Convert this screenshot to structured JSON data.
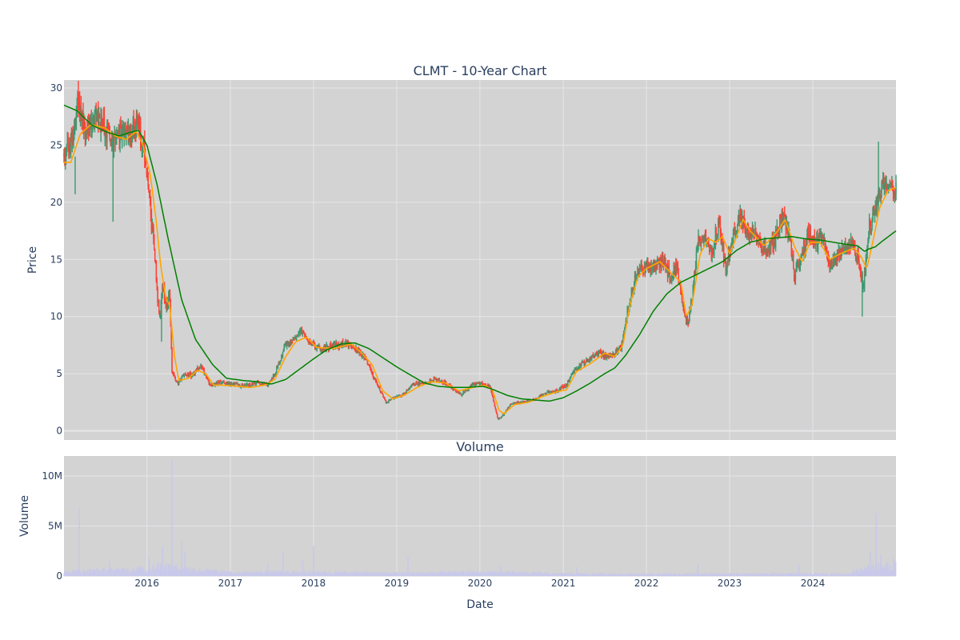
{
  "chart_data": [
    {
      "type": "candlestick",
      "title": "CLMT - 10-Year Chart",
      "ylabel": "Price",
      "xlim": [
        "2015-01-02",
        "2024-12-31"
      ],
      "ylim": [
        -0.8,
        30.7
      ],
      "yticks": [
        0,
        5,
        10,
        15,
        20,
        25,
        30
      ],
      "grid": true,
      "legend": "none",
      "colors": {
        "plot_bg": "#d3d3d3",
        "grid": "#e6e6ea",
        "increasing": "#3d9970",
        "decreasing": "#ff4136",
        "ma_short": "#ffa500",
        "ma_long": "#008000"
      },
      "price_path": [
        [
          "2015-01-02",
          24.0
        ],
        [
          "2015-02-10",
          25.5
        ],
        [
          "2015-03-05",
          28.8
        ],
        [
          "2015-04-01",
          26.2
        ],
        [
          "2015-05-15",
          27.5
        ],
        [
          "2015-07-01",
          26.5
        ],
        [
          "2015-08-15",
          25.0
        ],
        [
          "2015-09-10",
          26.2
        ],
        [
          "2015-10-15",
          25.8
        ],
        [
          "2015-11-20",
          27.0
        ],
        [
          "2015-12-20",
          24.5
        ],
        [
          "2016-01-10",
          20.5
        ],
        [
          "2016-02-05",
          15.0
        ],
        [
          "2016-02-25",
          9.5
        ],
        [
          "2016-03-10",
          12.8
        ],
        [
          "2016-03-25",
          10.8
        ],
        [
          "2016-04-10",
          12.0
        ],
        [
          "2016-04-20",
          5.2
        ],
        [
          "2016-05-15",
          4.1
        ],
        [
          "2016-06-15",
          5.0
        ],
        [
          "2016-07-20",
          4.8
        ],
        [
          "2016-08-25",
          5.8
        ],
        [
          "2016-10-01",
          4.0
        ],
        [
          "2016-11-15",
          4.2
        ],
        [
          "2017-01-10",
          4.1
        ],
        [
          "2017-03-01",
          3.9
        ],
        [
          "2017-05-01",
          4.2
        ],
        [
          "2017-06-15",
          4.0
        ],
        [
          "2017-07-20",
          5.2
        ],
        [
          "2017-09-01",
          7.5
        ],
        [
          "2017-10-15",
          8.2
        ],
        [
          "2017-11-01",
          8.8
        ],
        [
          "2017-12-15",
          7.8
        ],
        [
          "2018-02-01",
          7.2
        ],
        [
          "2018-04-01",
          7.5
        ],
        [
          "2018-06-01",
          7.6
        ],
        [
          "2018-07-15",
          7.0
        ],
        [
          "2018-08-15",
          6.4
        ],
        [
          "2018-10-01",
          4.3
        ],
        [
          "2018-11-15",
          2.5
        ],
        [
          "2018-12-20",
          2.9
        ],
        [
          "2019-02-01",
          3.2
        ],
        [
          "2019-03-10",
          4.0
        ],
        [
          "2019-05-01",
          4.2
        ],
        [
          "2019-06-15",
          4.5
        ],
        [
          "2019-08-01",
          4.2
        ],
        [
          "2019-09-15",
          3.5
        ],
        [
          "2019-10-15",
          3.2
        ],
        [
          "2019-12-01",
          4.0
        ],
        [
          "2020-01-10",
          4.2
        ],
        [
          "2020-02-15",
          3.8
        ],
        [
          "2020-03-20",
          1.0
        ],
        [
          "2020-04-15",
          1.4
        ],
        [
          "2020-05-15",
          2.4
        ],
        [
          "2020-07-01",
          2.5
        ],
        [
          "2020-09-01",
          2.8
        ],
        [
          "2020-10-15",
          3.3
        ],
        [
          "2020-12-01",
          3.5
        ],
        [
          "2021-01-15",
          4.0
        ],
        [
          "2021-02-20",
          5.5
        ],
        [
          "2021-04-01",
          5.9
        ],
        [
          "2021-06-01",
          6.8
        ],
        [
          "2021-08-01",
          6.5
        ],
        [
          "2021-09-15",
          7.5
        ],
        [
          "2021-10-15",
          11.0
        ],
        [
          "2021-11-15",
          13.5
        ],
        [
          "2021-12-15",
          14.5
        ],
        [
          "2022-01-15",
          14.2
        ],
        [
          "2022-03-15",
          14.8
        ],
        [
          "2022-04-15",
          13.5
        ],
        [
          "2022-05-15",
          14.5
        ],
        [
          "2022-06-15",
          10.0
        ],
        [
          "2022-07-01",
          9.3
        ],
        [
          "2022-07-20",
          11.5
        ],
        [
          "2022-08-15",
          16.5
        ],
        [
          "2022-09-15",
          17.2
        ],
        [
          "2022-10-15",
          15.5
        ],
        [
          "2022-11-15",
          18.5
        ],
        [
          "2022-12-15",
          14.0
        ],
        [
          "2023-01-10",
          16.5
        ],
        [
          "2023-02-15",
          19.0
        ],
        [
          "2023-03-15",
          17.2
        ],
        [
          "2023-04-15",
          17.5
        ],
        [
          "2023-05-15",
          16.0
        ],
        [
          "2023-06-15",
          15.8
        ],
        [
          "2023-07-15",
          16.5
        ],
        [
          "2023-08-15",
          18.8
        ],
        [
          "2023-09-15",
          17.8
        ],
        [
          "2023-10-15",
          13.5
        ],
        [
          "2023-11-15",
          15.5
        ],
        [
          "2023-12-15",
          17.5
        ],
        [
          "2024-01-15",
          16.5
        ],
        [
          "2024-02-15",
          16.8
        ],
        [
          "2024-03-15",
          14.5
        ],
        [
          "2024-04-15",
          15.2
        ],
        [
          "2024-05-15",
          16.0
        ],
        [
          "2024-06-15",
          16.2
        ],
        [
          "2024-07-15",
          15.5
        ],
        [
          "2024-08-10",
          12.5
        ],
        [
          "2024-09-01",
          17.5
        ],
        [
          "2024-09-20",
          18.5
        ],
        [
          "2024-10-10",
          20.0
        ],
        [
          "2024-10-25",
          21.2
        ],
        [
          "2024-11-15",
          22.0
        ],
        [
          "2024-12-31",
          21.0
        ]
      ],
      "ma_short_path": [
        [
          "2015-01-02",
          23.5
        ],
        [
          "2015-02-01",
          23.5
        ],
        [
          "2015-03-15",
          26.0
        ],
        [
          "2015-05-01",
          26.8
        ],
        [
          "2015-07-01",
          26.5
        ],
        [
          "2015-08-15",
          25.8
        ],
        [
          "2015-10-01",
          25.5
        ],
        [
          "2015-11-15",
          26.2
        ],
        [
          "2015-12-15",
          25.0
        ],
        [
          "2016-01-15",
          22.5
        ],
        [
          "2016-02-10",
          18.5
        ],
        [
          "2016-03-01",
          14.5
        ],
        [
          "2016-03-25",
          11.5
        ],
        [
          "2016-04-10",
          11.0
        ],
        [
          "2016-05-01",
          6.5
        ],
        [
          "2016-05-20",
          4.4
        ],
        [
          "2016-07-01",
          4.6
        ],
        [
          "2016-08-10",
          5.3
        ],
        [
          "2016-09-15",
          5.0
        ],
        [
          "2016-10-20",
          4.0
        ],
        [
          "2016-12-01",
          4.0
        ],
        [
          "2017-02-01",
          3.9
        ],
        [
          "2017-04-01",
          3.8
        ],
        [
          "2017-06-01",
          4.0
        ],
        [
          "2017-07-15",
          4.5
        ],
        [
          "2017-09-01",
          6.5
        ],
        [
          "2017-10-15",
          7.8
        ],
        [
          "2017-12-01",
          8.2
        ],
        [
          "2018-01-15",
          7.3
        ],
        [
          "2018-04-01",
          7.2
        ],
        [
          "2018-06-15",
          7.6
        ],
        [
          "2018-08-01",
          6.8
        ],
        [
          "2018-09-15",
          5.8
        ],
        [
          "2018-11-01",
          3.5
        ],
        [
          "2018-12-15",
          2.8
        ],
        [
          "2019-02-01",
          3.1
        ],
        [
          "2019-04-01",
          3.8
        ],
        [
          "2019-06-01",
          4.3
        ],
        [
          "2019-08-01",
          4.2
        ],
        [
          "2019-10-01",
          3.5
        ],
        [
          "2019-12-01",
          3.8
        ],
        [
          "2020-01-20",
          4.0
        ],
        [
          "2020-02-25",
          3.6
        ],
        [
          "2020-03-25",
          1.8
        ],
        [
          "2020-04-15",
          1.5
        ],
        [
          "2020-06-01",
          2.3
        ],
        [
          "2020-08-01",
          2.5
        ],
        [
          "2020-10-01",
          3.0
        ],
        [
          "2020-12-01",
          3.4
        ],
        [
          "2021-01-15",
          3.6
        ],
        [
          "2021-03-01",
          5.2
        ],
        [
          "2021-05-01",
          5.9
        ],
        [
          "2021-07-01",
          6.8
        ],
        [
          "2021-08-15",
          6.5
        ],
        [
          "2021-09-20",
          7.5
        ],
        [
          "2021-10-20",
          11.0
        ],
        [
          "2021-11-25",
          13.5
        ],
        [
          "2022-01-01",
          14.2
        ],
        [
          "2022-03-01",
          14.8
        ],
        [
          "2022-04-20",
          13.8
        ],
        [
          "2022-06-01",
          13.0
        ],
        [
          "2022-06-25",
          10.0
        ],
        [
          "2022-07-20",
          11.0
        ],
        [
          "2022-08-25",
          15.5
        ],
        [
          "2022-10-01",
          16.8
        ],
        [
          "2022-11-01",
          16.5
        ],
        [
          "2022-12-01",
          17.0
        ],
        [
          "2023-01-01",
          15.5
        ],
        [
          "2023-02-01",
          17.0
        ],
        [
          "2023-03-01",
          18.5
        ],
        [
          "2023-04-01",
          17.5
        ],
        [
          "2023-06-01",
          16.2
        ],
        [
          "2023-08-01",
          17.5
        ],
        [
          "2023-09-01",
          18.5
        ],
        [
          "2023-10-15",
          16.0
        ],
        [
          "2023-11-15",
          14.8
        ],
        [
          "2023-12-20",
          16.5
        ],
        [
          "2024-02-01",
          16.5
        ],
        [
          "2024-03-15",
          15.0
        ],
        [
          "2024-05-01",
          15.5
        ],
        [
          "2024-07-01",
          16.0
        ],
        [
          "2024-08-01",
          15.2
        ],
        [
          "2024-08-25",
          14.2
        ],
        [
          "2024-09-20",
          16.5
        ],
        [
          "2024-10-20",
          19.5
        ],
        [
          "2024-11-25",
          21.0
        ],
        [
          "2024-12-31",
          21.3
        ]
      ],
      "ma_long_path": [
        [
          "2015-01-02",
          28.5
        ],
        [
          "2015-03-01",
          28.0
        ],
        [
          "2015-05-01",
          26.8
        ],
        [
          "2015-07-01",
          26.2
        ],
        [
          "2015-09-01",
          25.8
        ],
        [
          "2015-10-15",
          26.1
        ],
        [
          "2015-11-25",
          26.3
        ],
        [
          "2016-01-01",
          25.0
        ],
        [
          "2016-02-15",
          21.5
        ],
        [
          "2016-04-01",
          17.0
        ],
        [
          "2016-06-01",
          11.5
        ],
        [
          "2016-08-01",
          8.0
        ],
        [
          "2016-10-15",
          5.8
        ],
        [
          "2016-12-15",
          4.6
        ],
        [
          "2017-03-01",
          4.4
        ],
        [
          "2017-05-01",
          4.3
        ],
        [
          "2017-07-01",
          4.1
        ],
        [
          "2017-09-01",
          4.5
        ],
        [
          "2017-11-01",
          5.4
        ],
        [
          "2018-01-01",
          6.3
        ],
        [
          "2018-03-01",
          7.1
        ],
        [
          "2018-05-01",
          7.6
        ],
        [
          "2018-07-01",
          7.7
        ],
        [
          "2018-09-01",
          7.2
        ],
        [
          "2018-11-01",
          6.4
        ],
        [
          "2019-01-01",
          5.6
        ],
        [
          "2019-03-01",
          4.9
        ],
        [
          "2019-05-01",
          4.2
        ],
        [
          "2019-07-01",
          3.9
        ],
        [
          "2019-09-01",
          3.8
        ],
        [
          "2019-11-01",
          3.8
        ],
        [
          "2020-01-15",
          3.9
        ],
        [
          "2020-03-01",
          3.6
        ],
        [
          "2020-05-01",
          3.1
        ],
        [
          "2020-07-01",
          2.8
        ],
        [
          "2020-09-01",
          2.7
        ],
        [
          "2020-11-01",
          2.6
        ],
        [
          "2021-01-01",
          2.9
        ],
        [
          "2021-03-01",
          3.5
        ],
        [
          "2021-05-01",
          4.2
        ],
        [
          "2021-07-01",
          5.0
        ],
        [
          "2021-08-15",
          5.5
        ],
        [
          "2021-10-01",
          6.6
        ],
        [
          "2021-12-01",
          8.4
        ],
        [
          "2022-02-01",
          10.5
        ],
        [
          "2022-04-01",
          12.0
        ],
        [
          "2022-06-01",
          13.0
        ],
        [
          "2022-08-01",
          13.6
        ],
        [
          "2022-10-01",
          14.2
        ],
        [
          "2022-12-01",
          14.8
        ],
        [
          "2023-02-01",
          15.8
        ],
        [
          "2023-04-01",
          16.5
        ],
        [
          "2023-06-01",
          16.8
        ],
        [
          "2023-08-01",
          16.9
        ],
        [
          "2023-10-01",
          17.0
        ],
        [
          "2023-12-01",
          16.8
        ],
        [
          "2024-02-01",
          16.7
        ],
        [
          "2024-04-01",
          16.5
        ],
        [
          "2024-06-01",
          16.3
        ],
        [
          "2024-07-15",
          16.2
        ],
        [
          "2024-08-15",
          15.7
        ],
        [
          "2024-09-01",
          15.9
        ],
        [
          "2024-10-01",
          16.1
        ],
        [
          "2024-11-01",
          16.6
        ],
        [
          "2024-12-31",
          17.5
        ]
      ]
    },
    {
      "type": "bar",
      "title": "Volume",
      "xlabel": "Date",
      "ylabel": "Volume",
      "xlim": [
        "2015-01-02",
        "2024-12-31"
      ],
      "ylim": [
        0,
        12000000
      ],
      "yticks": [
        0,
        5000000,
        10000000
      ],
      "ytick_labels": [
        "0",
        "5M",
        "10M"
      ],
      "xticks": [
        "2016-01-01",
        "2017-01-01",
        "2018-01-01",
        "2019-01-01",
        "2020-01-01",
        "2021-01-01",
        "2022-01-01",
        "2023-01-01",
        "2024-01-01"
      ],
      "xtick_labels": [
        "2016",
        "2017",
        "2018",
        "2019",
        "2020",
        "2021",
        "2022",
        "2023",
        "2024"
      ],
      "bar_color": "#c8c8ea",
      "base_volume": [
        [
          "2015-01-02",
          400000
        ],
        [
          "2016-01-01",
          600000
        ],
        [
          "2016-03-01",
          900000
        ],
        [
          "2016-07-01",
          600000
        ],
        [
          "2017-01-01",
          300000
        ],
        [
          "2018-01-01",
          350000
        ],
        [
          "2019-01-01",
          250000
        ],
        [
          "2020-03-01",
          350000
        ],
        [
          "2021-01-01",
          200000
        ],
        [
          "2022-01-01",
          180000
        ],
        [
          "2024-06-01",
          200000
        ],
        [
          "2024-09-01",
          700000
        ],
        [
          "2024-12-31",
          900000
        ]
      ],
      "volume_spikes": [
        [
          "2015-03-10",
          6800000
        ],
        [
          "2015-07-20",
          1500000
        ],
        [
          "2016-01-10",
          1800000
        ],
        [
          "2016-03-10",
          3000000
        ],
        [
          "2016-04-20",
          11600000
        ],
        [
          "2016-06-01",
          3500000
        ],
        [
          "2016-06-15",
          2500000
        ],
        [
          "2017-06-15",
          1300000
        ],
        [
          "2017-08-20",
          2500000
        ],
        [
          "2017-11-15",
          1600000
        ],
        [
          "2018-01-01",
          3000000
        ],
        [
          "2019-02-20",
          1900000
        ],
        [
          "2020-04-01",
          1000000
        ],
        [
          "2021-03-01",
          900000
        ],
        [
          "2022-08-15",
          1200000
        ],
        [
          "2023-11-01",
          1200000
        ],
        [
          "2024-09-10",
          2500000
        ],
        [
          "2024-10-05",
          6300000
        ],
        [
          "2024-10-25",
          2100000
        ],
        [
          "2024-12-20",
          1800000
        ]
      ]
    }
  ]
}
